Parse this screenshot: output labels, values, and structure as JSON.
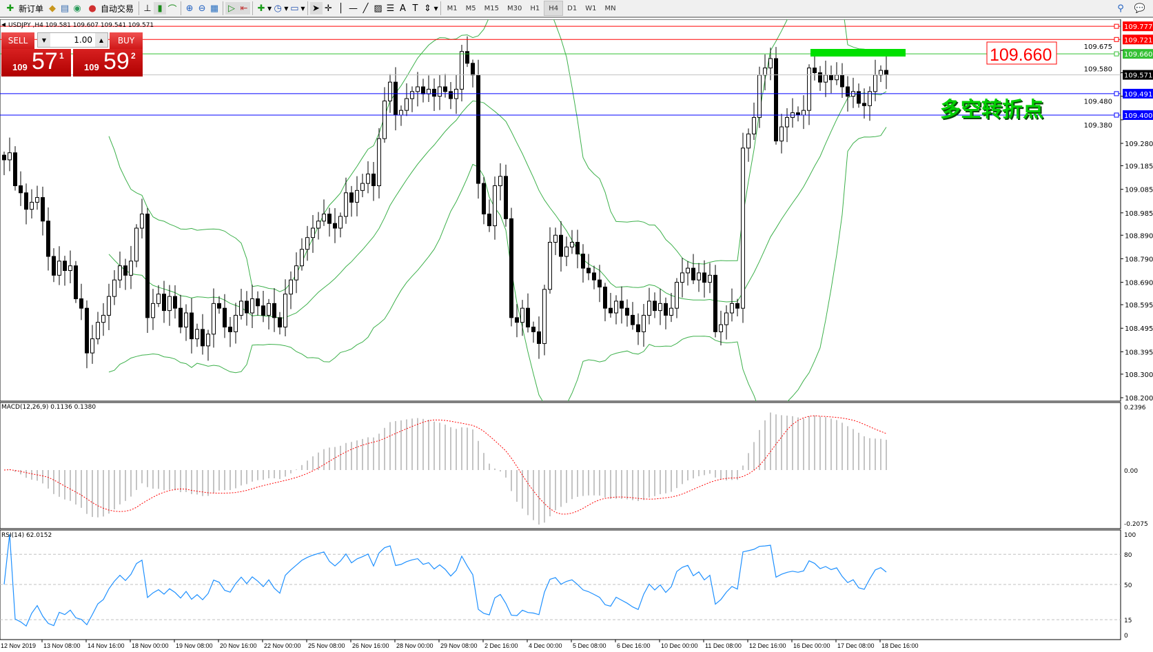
{
  "toolbar": {
    "new_order": "新订单",
    "auto_trading": "自动交易",
    "timeframes": [
      "M1",
      "M5",
      "M15",
      "M30",
      "H1",
      "H4",
      "D1",
      "W1",
      "MN"
    ],
    "active_timeframe": "H4"
  },
  "chart": {
    "header": "USDJPY ,H4  109.581 109.607 109.541 109.571",
    "symbol": "USDJPY",
    "period": "H4",
    "price_axis": [
      "109.675",
      "109.580",
      "109.480",
      "109.380",
      "109.280",
      "109.185",
      "109.085",
      "108.985",
      "108.890",
      "108.790",
      "108.690",
      "108.595",
      "108.495",
      "108.395",
      "108.300",
      "108.200"
    ],
    "levels": [
      {
        "price": "109.777",
        "color": "#ff0000"
      },
      {
        "price": "109.721",
        "color": "#ff0000"
      },
      {
        "price": "109.660",
        "color": "#33c033"
      },
      {
        "price": "109.571",
        "color": "#000000",
        "line": "#c0c0c0"
      },
      {
        "price": "109.491",
        "color": "#0000ff"
      },
      {
        "price": "109.400",
        "color": "#0000ff"
      }
    ],
    "price_label": "109.660",
    "annotation": "多空转折点",
    "closes": [
      109.21,
      109.24,
      109.1,
      109.07,
      109.0,
      109.03,
      109.05,
      108.95,
      108.8,
      108.72,
      108.78,
      108.74,
      108.76,
      108.62,
      108.58,
      108.39,
      108.45,
      108.52,
      108.55,
      108.63,
      108.7,
      108.76,
      108.72,
      108.78,
      108.92,
      108.98,
      108.54,
      108.6,
      108.64,
      108.57,
      108.63,
      108.58,
      108.5,
      108.56,
      108.45,
      108.49,
      108.42,
      108.47,
      108.6,
      108.58,
      108.5,
      108.48,
      108.55,
      108.61,
      108.56,
      108.62,
      108.59,
      108.55,
      108.6,
      108.54,
      108.5,
      108.64,
      108.7,
      108.76,
      108.83,
      108.88,
      108.92,
      108.95,
      108.98,
      108.94,
      108.92,
      108.97,
      109.07,
      109.03,
      109.08,
      109.11,
      109.15,
      109.1,
      109.3,
      109.46,
      109.54,
      109.4,
      109.42,
      109.47,
      109.5,
      109.52,
      109.49,
      109.51,
      109.48,
      109.52,
      109.5,
      109.47,
      109.51,
      109.67,
      109.62,
      109.57,
      109.11,
      108.98,
      108.93,
      109.1,
      109.14,
      108.96,
      108.54,
      108.52,
      108.58,
      108.5,
      108.48,
      108.43,
      108.66,
      108.86,
      108.89,
      108.8,
      108.84,
      108.86,
      108.81,
      108.75,
      108.73,
      108.7,
      108.67,
      108.58,
      108.56,
      108.61,
      108.58,
      108.55,
      108.51,
      108.48,
      108.55,
      108.61,
      108.57,
      108.6,
      108.55,
      108.58,
      108.69,
      108.73,
      108.75,
      108.7,
      108.73,
      108.69,
      108.72,
      108.48,
      108.51,
      108.56,
      108.6,
      108.58,
      109.26,
      109.32,
      109.39,
      109.57,
      109.6,
      109.64,
      109.29,
      109.35,
      109.39,
      109.41,
      109.4,
      109.42,
      109.6,
      109.58,
      109.54,
      109.57,
      109.55,
      109.57,
      109.52,
      109.48,
      109.5,
      109.45,
      109.44,
      109.5,
      109.57,
      109.59,
      109.571
    ]
  },
  "trade_panel": {
    "sell": "SELL",
    "buy": "BUY",
    "lots": "1.00",
    "bid_prefix": "109",
    "bid_big": "57",
    "bid_sup": "1",
    "ask_prefix": "109",
    "ask_big": "59",
    "ask_sup": "2"
  },
  "macd": {
    "header": "MACD(12,26,9) 0.1136 0.1380",
    "axis": [
      "0.2396",
      "0.00",
      "-0.2075"
    ]
  },
  "rsi": {
    "header": "RSI(14) 62.0152",
    "axis": [
      "100",
      "80",
      "50",
      "15",
      "0"
    ]
  },
  "time_axis": [
    "12 Nov 2019",
    "13 Nov 08:00",
    "14 Nov 16:00",
    "18 Nov 00:00",
    "19 Nov 08:00",
    "20 Nov 16:00",
    "22 Nov 00:00",
    "25 Nov 08:00",
    "26 Nov 16:00",
    "28 Nov 00:00",
    "29 Nov 08:00",
    "2 Dec 16:00",
    "4 Dec 00:00",
    "5 Dec 08:00",
    "6 Dec 16:00",
    "10 Dec 00:00",
    "11 Dec 08:00",
    "12 Dec 16:00",
    "16 Dec 00:00",
    "17 Dec 08:00",
    "18 Dec 16:00"
  ]
}
